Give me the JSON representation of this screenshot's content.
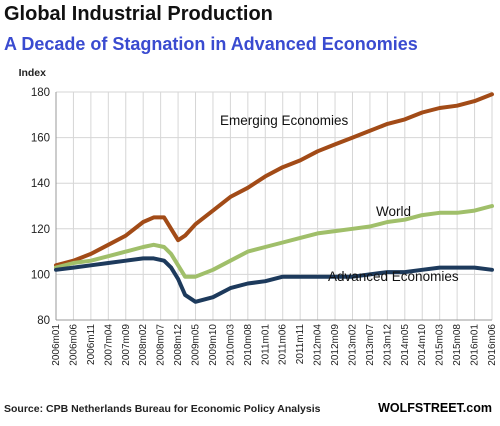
{
  "title": "Global Industrial Production",
  "subtitle": "A Decade of Stagnation in Advanced Economies",
  "source": "Source: CPB Netherlands Bureau for Economic Policy Analysis",
  "brand": "WOLFSTREET.com",
  "chart_data": {
    "type": "line",
    "ylabel": "Index",
    "xlabel": "",
    "ylim": [
      80,
      180
    ],
    "yticks": [
      80,
      100,
      120,
      140,
      160,
      180
    ],
    "xlim": [
      "2006m01",
      "2016m06"
    ],
    "xticks": [
      "2006m01",
      "2006m06",
      "2006m11",
      "2007m04",
      "2007m09",
      "2008m02",
      "2008m07",
      "2008m12",
      "2009m05",
      "2009m10",
      "2010m03",
      "2010m08",
      "2011m01",
      "2011m06",
      "2011m11",
      "2012m04",
      "2012m09",
      "2013m02",
      "2013m07",
      "2013m12",
      "2014m05",
      "2014m10",
      "2015m03",
      "2015m08",
      "2016m01",
      "2016m06"
    ],
    "grid": true,
    "legend": "none",
    "annotations": [
      {
        "text": "Emerging Economies",
        "series": "Emerging Economies"
      },
      {
        "text": "World",
        "series": "World"
      },
      {
        "text": "Advanced Economies",
        "series": "Advanced Economies"
      }
    ],
    "series": [
      {
        "name": "Emerging Economies",
        "color": "#a24b17",
        "points": [
          [
            "2006m01",
            104
          ],
          [
            "2006m06",
            106
          ],
          [
            "2006m11",
            109
          ],
          [
            "2007m04",
            113
          ],
          [
            "2007m09",
            117
          ],
          [
            "2008m02",
            123
          ],
          [
            "2008m05",
            125
          ],
          [
            "2008m08",
            125
          ],
          [
            "2008m10",
            120
          ],
          [
            "2008m12",
            115
          ],
          [
            "2009m02",
            117
          ],
          [
            "2009m05",
            122
          ],
          [
            "2009m10",
            128
          ],
          [
            "2010m03",
            134
          ],
          [
            "2010m08",
            138
          ],
          [
            "2011m01",
            143
          ],
          [
            "2011m06",
            147
          ],
          [
            "2011m11",
            150
          ],
          [
            "2012m04",
            154
          ],
          [
            "2012m09",
            157
          ],
          [
            "2013m02",
            160
          ],
          [
            "2013m07",
            163
          ],
          [
            "2013m12",
            166
          ],
          [
            "2014m05",
            168
          ],
          [
            "2014m10",
            171
          ],
          [
            "2015m03",
            173
          ],
          [
            "2015m08",
            174
          ],
          [
            "2016m01",
            176
          ],
          [
            "2016m06",
            179
          ]
        ]
      },
      {
        "name": "World",
        "color": "#a0bf6a",
        "points": [
          [
            "2006m01",
            103
          ],
          [
            "2006m06",
            105
          ],
          [
            "2006m11",
            106
          ],
          [
            "2007m04",
            108
          ],
          [
            "2007m09",
            110
          ],
          [
            "2008m02",
            112
          ],
          [
            "2008m05",
            113
          ],
          [
            "2008m08",
            112
          ],
          [
            "2008m10",
            109
          ],
          [
            "2008m12",
            104
          ],
          [
            "2009m02",
            99
          ],
          [
            "2009m05",
            99
          ],
          [
            "2009m10",
            102
          ],
          [
            "2010m03",
            106
          ],
          [
            "2010m08",
            110
          ],
          [
            "2011m01",
            112
          ],
          [
            "2011m06",
            114
          ],
          [
            "2011m11",
            116
          ],
          [
            "2012m04",
            118
          ],
          [
            "2012m09",
            119
          ],
          [
            "2013m02",
            120
          ],
          [
            "2013m07",
            121
          ],
          [
            "2013m12",
            123
          ],
          [
            "2014m05",
            124
          ],
          [
            "2014m10",
            126
          ],
          [
            "2015m03",
            127
          ],
          [
            "2015m08",
            127
          ],
          [
            "2016m01",
            128
          ],
          [
            "2016m06",
            130
          ]
        ]
      },
      {
        "name": "Advanced Economies",
        "color": "#1d3a5c",
        "points": [
          [
            "2006m01",
            102
          ],
          [
            "2006m06",
            103
          ],
          [
            "2006m11",
            104
          ],
          [
            "2007m04",
            105
          ],
          [
            "2007m09",
            106
          ],
          [
            "2008m02",
            107
          ],
          [
            "2008m05",
            107
          ],
          [
            "2008m08",
            106
          ],
          [
            "2008m10",
            103
          ],
          [
            "2008m12",
            98
          ],
          [
            "2009m02",
            91
          ],
          [
            "2009m05",
            88
          ],
          [
            "2009m10",
            90
          ],
          [
            "2010m03",
            94
          ],
          [
            "2010m08",
            96
          ],
          [
            "2011m01",
            97
          ],
          [
            "2011m06",
            99
          ],
          [
            "2011m11",
            99
          ],
          [
            "2012m04",
            99
          ],
          [
            "2012m09",
            99
          ],
          [
            "2013m02",
            99
          ],
          [
            "2013m07",
            100
          ],
          [
            "2013m12",
            101
          ],
          [
            "2014m05",
            101
          ],
          [
            "2014m10",
            102
          ],
          [
            "2015m03",
            103
          ],
          [
            "2015m08",
            103
          ],
          [
            "2016m01",
            103
          ],
          [
            "2016m06",
            102
          ]
        ]
      }
    ]
  }
}
